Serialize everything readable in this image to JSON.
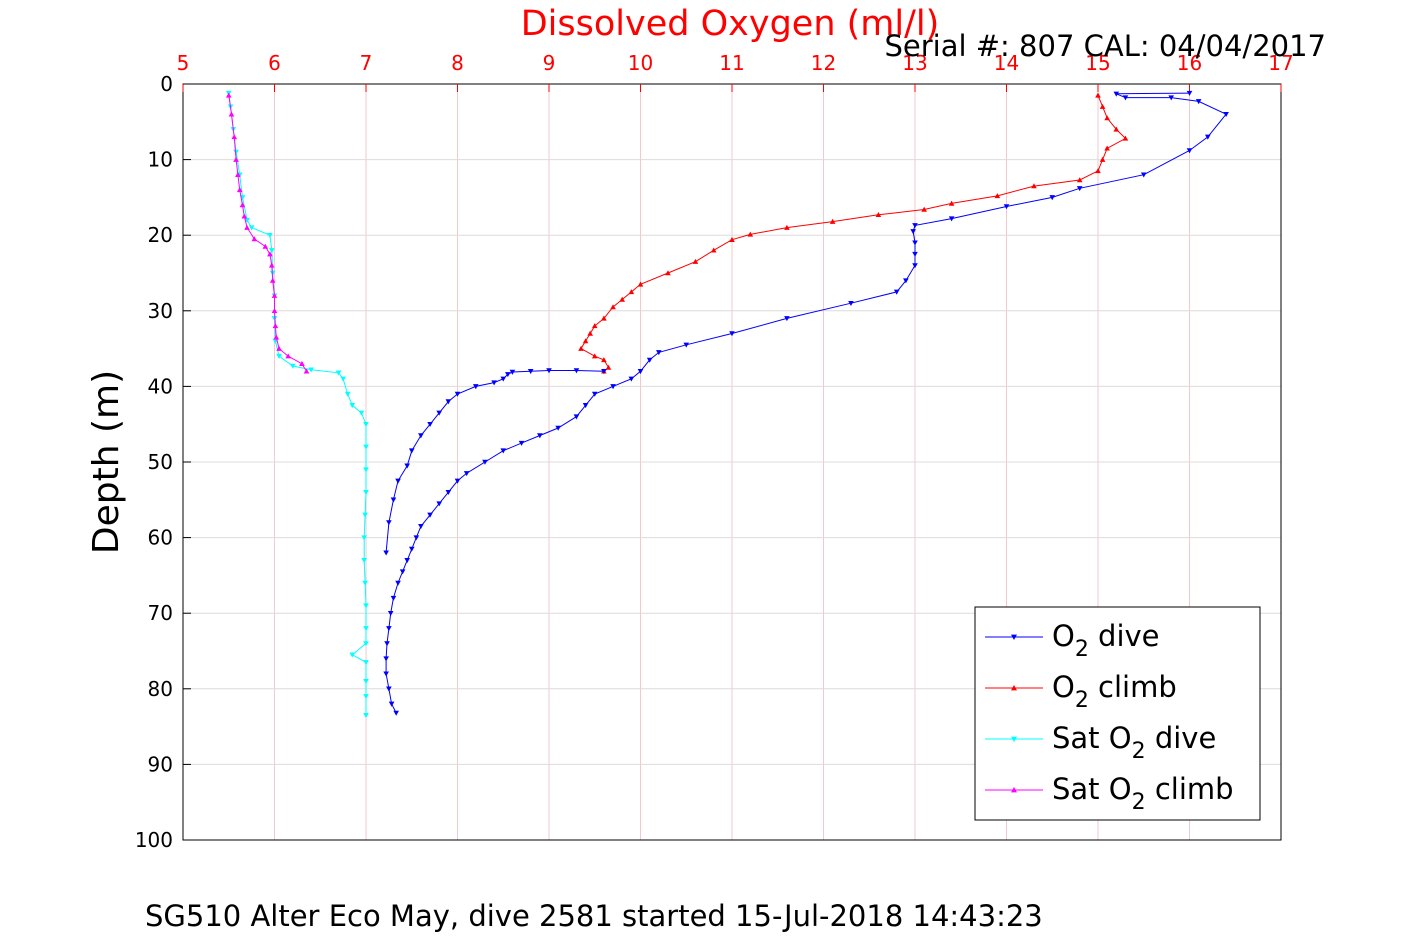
{
  "chart_data": {
    "type": "line",
    "title": "Dissolved Oxygen (ml/l)",
    "subtitle": "Serial #: 807  CAL: 04/04/2017",
    "footer": "SG510 Alter Eco May, dive 2581 started 15-Jul-2018 14:43:23",
    "xlabel": "",
    "ylabel": "Depth (m)",
    "xlim": [
      5,
      17
    ],
    "ylim": [
      0,
      100
    ],
    "y_reversed": true,
    "x_axis_position": "top",
    "x_ticks": [
      5,
      6,
      7,
      8,
      9,
      10,
      11,
      12,
      13,
      14,
      15,
      16,
      17
    ],
    "y_ticks": [
      0,
      10,
      20,
      30,
      40,
      50,
      60,
      70,
      80,
      90,
      100
    ],
    "grid": true,
    "legend_position": "bottom-right",
    "colors": {
      "title": "#ff0000",
      "x_tick_labels": "#ff0000",
      "grid": "#f2c9cc"
    },
    "series": [
      {
        "legend": {
          "pre": "O",
          "sub": "2",
          "post": " dive"
        },
        "color": "#0000ff",
        "marker": "down-triangle",
        "points": [
          [
            16.0,
            1.2
          ],
          [
            15.2,
            1.3
          ],
          [
            15.3,
            1.8
          ],
          [
            15.8,
            1.8
          ],
          [
            16.1,
            2.3
          ],
          [
            16.4,
            4.0
          ],
          [
            16.2,
            7.0
          ],
          [
            16.0,
            8.8
          ],
          [
            15.5,
            12.0
          ],
          [
            14.8,
            13.8
          ],
          [
            14.5,
            15.0
          ],
          [
            14.0,
            16.2
          ],
          [
            13.4,
            17.8
          ],
          [
            13.0,
            18.7
          ],
          [
            12.98,
            19.5
          ],
          [
            13.0,
            21.0
          ],
          [
            13.0,
            22.5
          ],
          [
            13.0,
            24.0
          ],
          [
            12.9,
            26.0
          ],
          [
            12.8,
            27.5
          ],
          [
            12.3,
            29.0
          ],
          [
            11.6,
            31.0
          ],
          [
            11.0,
            33.0
          ],
          [
            10.5,
            34.5
          ],
          [
            10.2,
            35.5
          ],
          [
            10.1,
            36.5
          ],
          [
            10.0,
            38.0
          ],
          [
            9.9,
            39.0
          ],
          [
            9.7,
            40.0
          ],
          [
            9.5,
            41.0
          ],
          [
            9.4,
            42.5
          ],
          [
            9.3,
            44.0
          ],
          [
            9.1,
            45.5
          ],
          [
            8.9,
            46.5
          ],
          [
            8.7,
            47.5
          ],
          [
            8.5,
            48.5
          ],
          [
            8.3,
            50.0
          ],
          [
            8.1,
            51.5
          ],
          [
            8.0,
            52.5
          ],
          [
            7.9,
            54.0
          ],
          [
            7.8,
            55.5
          ],
          [
            7.7,
            57.0
          ],
          [
            7.6,
            58.5
          ],
          [
            7.55,
            60.0
          ],
          [
            7.5,
            61.5
          ],
          [
            7.45,
            63.0
          ],
          [
            7.4,
            64.5
          ],
          [
            7.35,
            66.0
          ],
          [
            7.3,
            68.0
          ],
          [
            7.27,
            70.0
          ],
          [
            7.25,
            72.0
          ],
          [
            7.23,
            74.0
          ],
          [
            7.22,
            76.0
          ],
          [
            7.22,
            78.0
          ],
          [
            7.25,
            80.0
          ],
          [
            7.28,
            82.0
          ],
          [
            7.33,
            83.2
          ]
        ]
      },
      {
        "legend": {
          "pre": "O",
          "sub": "2",
          "post": " climb"
        },
        "color": "#ff0000",
        "marker": "up-triangle",
        "points": [
          [
            15.0,
            1.5
          ],
          [
            15.05,
            3.0
          ],
          [
            15.1,
            4.5
          ],
          [
            15.2,
            6.0
          ],
          [
            15.3,
            7.2
          ],
          [
            15.1,
            8.5
          ],
          [
            15.05,
            10.0
          ],
          [
            15.0,
            11.5
          ],
          [
            14.8,
            12.7
          ],
          [
            14.3,
            13.5
          ],
          [
            13.9,
            14.8
          ],
          [
            13.4,
            15.8
          ],
          [
            13.1,
            16.6
          ],
          [
            12.6,
            17.3
          ],
          [
            12.1,
            18.2
          ],
          [
            11.6,
            19.0
          ],
          [
            11.2,
            19.9
          ],
          [
            11.0,
            20.6
          ],
          [
            10.8,
            22.0
          ],
          [
            10.6,
            23.5
          ],
          [
            10.3,
            25.0
          ],
          [
            10.0,
            26.5
          ],
          [
            9.9,
            27.5
          ],
          [
            9.8,
            28.5
          ],
          [
            9.7,
            29.5
          ],
          [
            9.6,
            31.0
          ],
          [
            9.5,
            32.0
          ],
          [
            9.45,
            33.0
          ],
          [
            9.4,
            34.0
          ],
          [
            9.35,
            35.0
          ],
          [
            9.5,
            36.0
          ],
          [
            9.6,
            36.5
          ],
          [
            9.65,
            37.5
          ],
          [
            9.6,
            38.0
          ]
        ]
      },
      {
        "legend": {
          "pre": "Sat O",
          "sub": "2",
          "post": " dive"
        },
        "color": "#00ffff",
        "marker": "down-triangle",
        "points": [
          [
            5.5,
            1.2
          ],
          [
            5.52,
            3.0
          ],
          [
            5.55,
            6.0
          ],
          [
            5.58,
            9.0
          ],
          [
            5.62,
            12.0
          ],
          [
            5.65,
            15.0
          ],
          [
            5.7,
            18.0
          ],
          [
            5.75,
            19.0
          ],
          [
            5.95,
            20.0
          ],
          [
            5.97,
            22.0
          ],
          [
            5.98,
            25.0
          ],
          [
            6.0,
            28.0
          ],
          [
            6.0,
            31.0
          ],
          [
            6.01,
            34.0
          ],
          [
            6.05,
            36.0
          ],
          [
            6.2,
            37.3
          ],
          [
            6.4,
            37.8
          ],
          [
            6.7,
            38.2
          ],
          [
            6.75,
            39.0
          ],
          [
            6.8,
            41.0
          ],
          [
            6.85,
            42.5
          ],
          [
            6.95,
            43.5
          ],
          [
            7.0,
            45.0
          ],
          [
            7.0,
            48.0
          ],
          [
            7.0,
            51.0
          ],
          [
            7.0,
            54.0
          ],
          [
            6.99,
            57.0
          ],
          [
            6.98,
            60.0
          ],
          [
            6.98,
            63.0
          ],
          [
            6.99,
            66.0
          ],
          [
            7.0,
            69.0
          ],
          [
            7.0,
            72.0
          ],
          [
            7.0,
            74.0
          ],
          [
            6.85,
            75.5
          ],
          [
            7.0,
            76.5
          ],
          [
            7.0,
            79.0
          ],
          [
            7.0,
            81.0
          ],
          [
            7.0,
            83.5
          ]
        ]
      },
      {
        "legend": {
          "pre": "Sat O",
          "sub": "2",
          "post": " climb"
        },
        "color": "#ff00ff",
        "marker": "up-triangle",
        "points": [
          [
            5.5,
            1.5
          ],
          [
            5.53,
            4.0
          ],
          [
            5.56,
            7.0
          ],
          [
            5.58,
            10.0
          ],
          [
            5.6,
            12.0
          ],
          [
            5.62,
            14.0
          ],
          [
            5.65,
            16.0
          ],
          [
            5.67,
            17.5
          ],
          [
            5.7,
            19.0
          ],
          [
            5.78,
            20.5
          ],
          [
            5.9,
            21.5
          ],
          [
            5.95,
            22.5
          ],
          [
            5.97,
            24.0
          ],
          [
            5.98,
            26.0
          ],
          [
            6.0,
            28.0
          ],
          [
            6.0,
            30.0
          ],
          [
            6.01,
            32.0
          ],
          [
            6.02,
            33.5
          ],
          [
            6.05,
            35.0
          ],
          [
            6.15,
            36.0
          ],
          [
            6.3,
            37.0
          ],
          [
            6.35,
            38.0
          ]
        ]
      }
    ],
    "extra_cluster_dive_near_38m": [
      [
        9.6,
        38.0
      ],
      [
        9.3,
        37.9
      ],
      [
        9.0,
        37.9
      ],
      [
        8.8,
        38.0
      ],
      [
        8.6,
        38.1
      ],
      [
        8.55,
        38.4
      ],
      [
        8.5,
        39.0
      ],
      [
        8.4,
        39.5
      ],
      [
        8.2,
        40.0
      ],
      [
        8.0,
        41.0
      ],
      [
        7.9,
        42.0
      ],
      [
        7.8,
        43.5
      ],
      [
        7.7,
        45.0
      ],
      [
        7.6,
        46.5
      ],
      [
        7.5,
        48.5
      ],
      [
        7.45,
        50.5
      ],
      [
        7.35,
        52.5
      ],
      [
        7.3,
        55.0
      ],
      [
        7.25,
        58.0
      ],
      [
        7.22,
        62.0
      ]
    ]
  }
}
